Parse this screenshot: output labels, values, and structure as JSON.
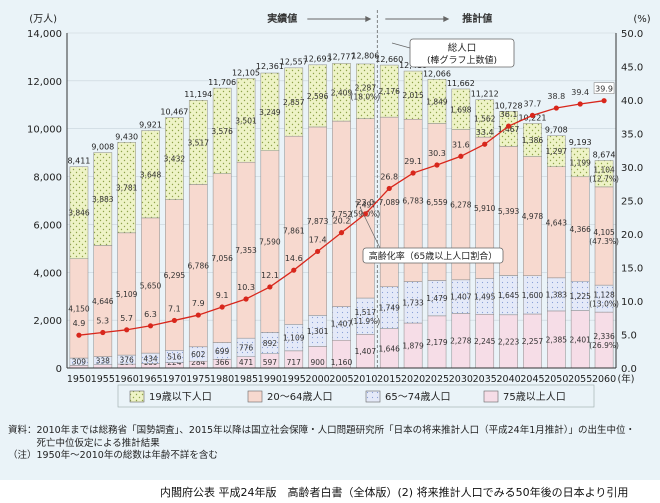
{
  "chart_data": {
    "type": "bar",
    "subtype": "stacked-bar-with-line",
    "y_unit_left": "(万人)",
    "y_unit_right": "(%)",
    "ylim_left": [
      0,
      14000
    ],
    "ylim_right": [
      0,
      50
    ],
    "left_ticks": [
      "0",
      "2,000",
      "4,000",
      "6,000",
      "8,000",
      "10,000",
      "12,000",
      "14,000"
    ],
    "right_ticks": [
      "0.0",
      "5.0",
      "10.0",
      "15.0",
      "20.0",
      "25.0",
      "30.0",
      "35.0",
      "40.0",
      "45.0",
      "50.0"
    ],
    "x_unit": "(年)",
    "categories": [
      "1950",
      "1955",
      "1960",
      "1965",
      "1970",
      "1975",
      "1980",
      "1985",
      "1990",
      "1995",
      "2000",
      "2005",
      "2010",
      "2015",
      "2020",
      "2025",
      "2030",
      "2035",
      "2040",
      "2045",
      "2050",
      "2055",
      "2060"
    ],
    "section_actual": "実績値",
    "section_projected": "推計値",
    "series": [
      {
        "name": "75歳以上人口",
        "color": "#f6dde7",
        "values": [
          107,
          138,
          164,
          189,
          224,
          284,
          366,
          471,
          597,
          717,
          900,
          1160,
          1407,
          1646,
          1879,
          2179,
          2278,
          2245,
          2223,
          2257,
          2385,
          2401,
          2336
        ],
        "labels": [
          "107",
          "138",
          "164",
          "189",
          "224",
          "284",
          "366",
          "471",
          "597",
          "717",
          "900",
          "1,160",
          "1,407",
          "1,646",
          "1,879",
          "2,179",
          "2,278",
          "2,245",
          "2,223",
          "2,257",
          "2,385",
          "2,401",
          "2,336"
        ]
      },
      {
        "name": "65～74歳人口",
        "color": "#e4e9f8",
        "values": [
          309,
          338,
          376,
          434,
          516,
          602,
          699,
          776,
          892,
          1109,
          1301,
          1407,
          1517,
          1749,
          1733,
          1479,
          1407,
          1495,
          1645,
          1600,
          1383,
          1225,
          1128
        ],
        "labels": [
          "309",
          "338",
          "376",
          "434",
          "516",
          "602",
          "699",
          "776",
          "892",
          "1,109",
          "1,301",
          "1,407",
          "1,517",
          "1,749",
          "1,733",
          "1,479",
          "1,407",
          "1,495",
          "1,645",
          "1,600",
          "1,383",
          "1,225",
          "1,128"
        ]
      },
      {
        "name": "20～64歳人口",
        "color": "#f7d9cf",
        "values": [
          4150,
          4646,
          5109,
          5650,
          6295,
          6786,
          7056,
          7353,
          7590,
          7861,
          7873,
          7752,
          7497,
          7089,
          6783,
          6559,
          6278,
          5910,
          5393,
          4978,
          4643,
          4366,
          4105
        ],
        "labels": [
          "4,150",
          "4,646",
          "5,109",
          "5,650",
          "6,295",
          "6,786",
          "7,056",
          "7,353",
          "7,590",
          "7,861",
          "7,873",
          "7,752",
          "7,497",
          "7,089",
          "6,783",
          "6,559",
          "6,278",
          "5,910",
          "5,393",
          "4,978",
          "4,643",
          "4,366",
          "4,105"
        ]
      },
      {
        "name": "19歳以下人口",
        "color": "#eef3c6",
        "values": [
          3846,
          3883,
          3781,
          3648,
          3432,
          3517,
          3576,
          3501,
          3249,
          2857,
          2596,
          2409,
          2287,
          2176,
          2015,
          1849,
          1698,
          1562,
          1467,
          1386,
          1297,
          1199,
          1104
        ],
        "labels": [
          "3,846",
          "3,883",
          "3,781",
          "3,648",
          "3,432",
          "3,517",
          "3,576",
          "3,501",
          "3,249",
          "2,857",
          "2,596",
          "2,409",
          "2,287",
          "2,176",
          "2,015",
          "1,849",
          "1,698",
          "1,562",
          "1,467",
          "1,386",
          "1,297",
          "1,199",
          "1,104"
        ]
      }
    ],
    "share_labels": [
      {
        "category": "2010",
        "series": "19歳以下人口",
        "text": "(18.0%)"
      },
      {
        "category": "2010",
        "series": "20～64歳人口",
        "text": "(59.0%)"
      },
      {
        "category": "2010",
        "series": "65～74歳人口",
        "text": "(11.9%)"
      },
      {
        "category": "2060",
        "series": "19歳以下人口",
        "text": "(12.7%)"
      },
      {
        "category": "2060",
        "series": "20～64歳人口",
        "text": "(47.3%)"
      },
      {
        "category": "2060",
        "series": "65～74歳人口",
        "text": "(13.0%)"
      },
      {
        "category": "2060",
        "series": "75歳以上人口",
        "text": "(26.9%)"
      }
    ],
    "totals": {
      "values": [
        8411,
        9008,
        9430,
        9921,
        10467,
        11194,
        11706,
        12105,
        12361,
        12557,
        12693,
        12777,
        12806,
        12660,
        12410,
        12066,
        11662,
        11212,
        10728,
        10221,
        9708,
        9193,
        8674
      ],
      "labels": [
        "8,411",
        "9,008",
        "9,430",
        "9,921",
        "10,467",
        "11,194",
        "11,706",
        "12,105",
        "12,361",
        "12,557",
        "12,693",
        "12,777",
        "12,806",
        "12,660",
        "12,410",
        "12,066",
        "11,662",
        "11,212",
        "10,728",
        "10,221",
        "9,708",
        "9,193",
        "8,674"
      ]
    },
    "aging_rate": {
      "name": "高齢化率（65歳以上人口割合）",
      "color": "#d8271c",
      "values": [
        4.9,
        5.3,
        5.7,
        6.3,
        7.1,
        7.9,
        9.1,
        10.3,
        12.1,
        14.6,
        17.4,
        20.2,
        23.0,
        26.8,
        29.1,
        30.3,
        31.6,
        33.4,
        36.1,
        37.7,
        38.8,
        39.4,
        39.9
      ],
      "labels": [
        "4.9",
        "5.3",
        "5.7",
        "6.3",
        "7.1",
        "7.9",
        "9.1",
        "10.3",
        "12.1",
        "14.6",
        "17.4",
        "20.2",
        "23.0",
        "26.8",
        "29.1",
        "30.3",
        "31.6",
        "33.4",
        "36.1",
        "37.7",
        "38.8",
        "39.4",
        "39.9"
      ]
    },
    "callout_total": {
      "line1": "総人口",
      "line2": "(棒グラフ上数値)"
    },
    "legend_order": [
      "19歳以下人口",
      "20～64歳人口",
      "65～74歳人口",
      "75歳以上人口"
    ],
    "legend_placement": "bottom"
  },
  "source": {
    "line1": "資料：2010年までは総務省「国勢調査」、2015年以降は国立社会保障・人口問題研究所「日本の将来推計人口（平成24年1月推計）」の出生中位・",
    "line2": "　　　死亡中位仮定による推計結果",
    "line3": "（注）1950年～2010年の総数は年齢不詳を含む"
  },
  "credit": "内閣府公表 平成24年版　高齢者白書（全体版）(2) 将来推計人口でみる50年後の日本より引用",
  "colors": {
    "frame_bg": "#eaf3f8",
    "line": "#d8271c",
    "axis": "#333333"
  }
}
